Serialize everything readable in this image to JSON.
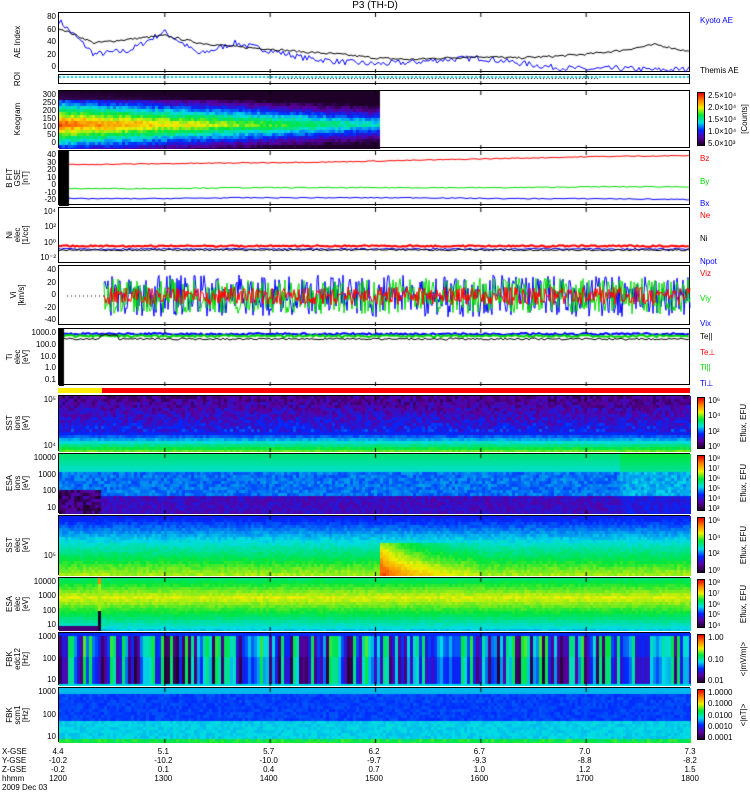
{
  "title": "P3 (TH-D)",
  "chart_data": {
    "type": "multi-panel overview (line + spectrogram)",
    "x_axis": {
      "rows": [
        {
          "label": "X-GSE",
          "values": [
            "4.4",
            "5.1",
            "5.7",
            "6.2",
            "6.7",
            "7.0",
            "7.3"
          ]
        },
        {
          "label": "Y-GSE",
          "values": [
            "-10.2",
            "-10.2",
            "-10.0",
            "-9.7",
            "-9.3",
            "-8.8",
            "-8.2"
          ]
        },
        {
          "label": "Z-GSE",
          "values": [
            "-0.2",
            "0.1",
            "0.4",
            "0.7",
            "1.0",
            "1.2",
            "1.5"
          ]
        },
        {
          "label": "hhmm",
          "values": [
            "1200",
            "1300",
            "1400",
            "1500",
            "1600",
            "1700",
            "1800"
          ]
        }
      ],
      "date": "2009 Dec 03",
      "range": [
        1200,
        1800
      ]
    },
    "panels": [
      {
        "id": "ae",
        "ylabel": "AE Index",
        "type": "line",
        "ylim": [
          0,
          80
        ],
        "ticks": [
          "80",
          "60",
          "40",
          "20",
          "0"
        ],
        "legend": [
          {
            "name": "Kyoto AE",
            "color": "#0000ff"
          },
          {
            "name": "Themis AE",
            "color": "#000000"
          }
        ],
        "series": [
          {
            "name": "Kyoto AE",
            "values": [
              70,
              25,
              30,
              55,
              25,
              40,
              30,
              20,
              15,
              12,
              14,
              18,
              20,
              14,
              8,
              5,
              6,
              4,
              5
            ]
          },
          {
            "name": "Themis AE",
            "values": [
              60,
              40,
              45,
              50,
              40,
              35,
              32,
              28,
              25,
              20,
              18,
              20,
              22,
              20,
              22,
              25,
              30,
              38,
              28
            ]
          }
        ]
      },
      {
        "id": "roi",
        "ylabel": "ROI",
        "type": "flags"
      },
      {
        "id": "keogram",
        "ylabel": "Keogram",
        "type": "spectrogram",
        "ylim": [
          0,
          300
        ],
        "ticks": [
          "300",
          "250",
          "200",
          "150",
          "100",
          "50",
          "0"
        ],
        "colorbar": {
          "labels": [
            "2.5×10⁴",
            "2.0×10⁴",
            "1.5×10⁴",
            "1.0×10⁴",
            "5.0×10³"
          ],
          "unit": "[Counts]"
        },
        "data_end": 1500
      },
      {
        "id": "bfit",
        "ylabel": "B FIT",
        "ylabel2": "GSE",
        "ylabel3": "[nT]",
        "type": "line",
        "ylim": [
          -20,
          40
        ],
        "ticks": [
          "40",
          "30",
          "20",
          "10",
          "0",
          "-10",
          "-20"
        ],
        "legend": [
          {
            "name": "Bz",
            "color": "#ff0000"
          },
          {
            "name": "By",
            "color": "#00dd00"
          },
          {
            "name": "Bx",
            "color": "#0000ff"
          }
        ],
        "series": [
          {
            "name": "Bz",
            "values": [
              25,
              26,
              27,
              28,
              30,
              32,
              34,
              35
            ]
          },
          {
            "name": "By",
            "values": [
              -1,
              -1,
              0,
              0,
              0,
              0,
              1,
              1
            ]
          },
          {
            "name": "Bx",
            "values": [
              -12,
              -12,
              -11,
              -11,
              -11,
              -12,
              -12,
              -13
            ]
          }
        ]
      },
      {
        "id": "ni",
        "ylabel": "Ni",
        "ylabel2": "elec",
        "ylabel3": "[1/cc]",
        "type": "line",
        "scale": "log",
        "ticks": [
          "10⁴",
          "10²",
          "10⁰",
          "10⁻²"
        ],
        "legend": [
          {
            "name": "Ne",
            "color": "#ff0000"
          },
          {
            "name": "Ni",
            "color": "#000000"
          },
          {
            "name": "Npot",
            "color": "#0000ff"
          }
        ]
      },
      {
        "id": "vi",
        "ylabel": "Vi",
        "ylabel2": "[km/s]",
        "type": "line",
        "ylim": [
          -50,
          50
        ],
        "ticks": [
          "40",
          "20",
          "0",
          "-20",
          "-40"
        ],
        "legend": [
          {
            "name": "Viz",
            "color": "#ff0000"
          },
          {
            "name": "Viy",
            "color": "#00dd00"
          },
          {
            "name": "Vix",
            "color": "#0000ff"
          }
        ]
      },
      {
        "id": "ti",
        "ylabel": "Ti",
        "ylabel2": "elec",
        "ylabel3": "[eV]",
        "type": "line",
        "scale": "log",
        "ticks": [
          "1000.0",
          "100.0",
          "10.0",
          "1.0",
          "0.1"
        ],
        "legend": [
          {
            "name": "Te||",
            "color": "#000000"
          },
          {
            "name": "Te⊥",
            "color": "#ff0000"
          },
          {
            "name": "Ti||",
            "color": "#00dd00"
          },
          {
            "name": "Ti⊥",
            "color": "#0000ff"
          }
        ]
      },
      {
        "id": "sst_ions",
        "ylabel": "SST",
        "ylabel2": "ions",
        "ylabel3": "[eV]",
        "type": "spectrogram",
        "ticks": [
          "10⁵",
          "10⁴"
        ],
        "colorbar": {
          "labels": [
            "10⁶",
            "10⁴",
            "10²",
            "10⁰"
          ],
          "unit": "Eflux, EFU"
        }
      },
      {
        "id": "esa_ions",
        "ylabel": "ESA",
        "ylabel2": "ions",
        "ylabel3": "[eV]",
        "type": "spectrogram",
        "ticks": [
          "10000",
          "1000",
          "100",
          "10"
        ],
        "colorbar": {
          "labels": [
            "10⁸",
            "10⁷",
            "10⁶",
            "10⁵",
            "10⁴",
            "10³"
          ],
          "unit": "Eflux, EFU"
        }
      },
      {
        "id": "sst_elec",
        "ylabel": "SST",
        "ylabel2": "elec",
        "ylabel3": "[eV]",
        "type": "spectrogram",
        "ticks": [
          "10⁵"
        ],
        "colorbar": {
          "labels": [
            "10⁶",
            "10⁴",
            "10²",
            "10⁰"
          ],
          "unit": "Eflux, EFU"
        }
      },
      {
        "id": "esa_elec",
        "ylabel": "ESA",
        "ylabel2": "elec",
        "ylabel3": "[eV]",
        "type": "spectrogram",
        "ticks": [
          "10000",
          "1000",
          "100",
          "10"
        ],
        "colorbar": {
          "labels": [
            "10⁸",
            "10⁷",
            "10⁶",
            "10⁵",
            "10⁴"
          ],
          "unit": "Eflux, EFU"
        }
      },
      {
        "id": "fbk_edc",
        "ylabel": "FBK",
        "ylabel2": "edc12",
        "ylabel3": "[Hz]",
        "type": "spectrogram",
        "ticks": [
          "1000",
          "100",
          "10"
        ],
        "colorbar": {
          "labels": [
            "1.00",
            "0.10",
            "0.01"
          ],
          "unit": "<|mV/m|>"
        }
      },
      {
        "id": "fbk_scm",
        "ylabel": "FBK",
        "ylabel2": "scm1",
        "ylabel3": "[Hz]",
        "type": "spectrogram",
        "ticks": [
          "1000",
          "100",
          "10"
        ],
        "colorbar": {
          "labels": [
            "1.0000",
            "0.1000",
            "0.0100",
            "0.0010",
            "0.0001"
          ],
          "unit": "<|nT|>"
        }
      }
    ]
  }
}
